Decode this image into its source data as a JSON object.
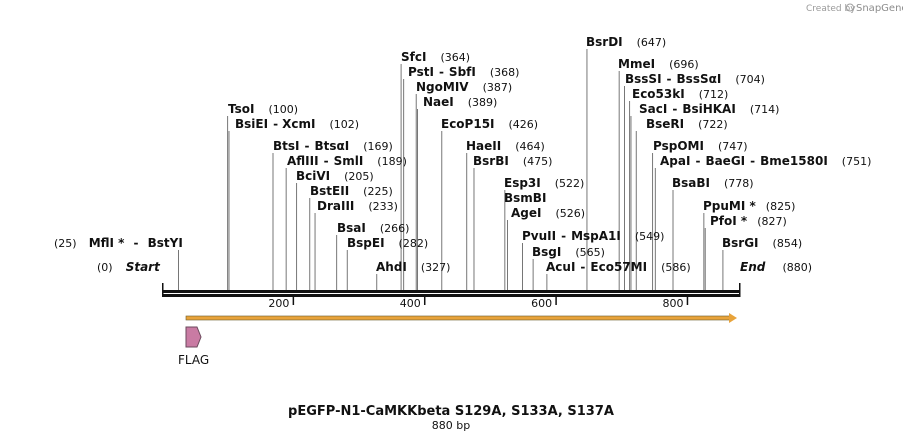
{
  "branding": {
    "prefix": "Created by",
    "product": "SnapGene"
  },
  "sequence": {
    "length": 880,
    "start": 0,
    "end": 880
  },
  "ends": {
    "start_label": "Start",
    "end_label": "End",
    "start_pos": "(0)",
    "end_pos": "(880)"
  },
  "axis": {
    "ticks": [
      200,
      400,
      600,
      800
    ]
  },
  "title": {
    "name": "pEGFP-N1-CaMKKbeta S129A, S133A, S137A",
    "size": "880 bp"
  },
  "features": [
    {
      "label": "FLAG",
      "type": "feature",
      "color": "#c97ba3"
    }
  ],
  "orf_color": "#e8a33a",
  "sites": [
    {
      "names": [
        "MflI *",
        "BstYI"
      ],
      "pos": 25,
      "left": true
    },
    {
      "names": [
        "TsoI"
      ],
      "pos": 100
    },
    {
      "names": [
        "BsiEI",
        "XcmI"
      ],
      "pos": 102
    },
    {
      "names": [
        "BtsI",
        "BtsαI"
      ],
      "pos": 169
    },
    {
      "names": [
        "AflIII",
        "SmlI"
      ],
      "pos": 189
    },
    {
      "names": [
        "BciVI"
      ],
      "pos": 205
    },
    {
      "names": [
        "BstEII"
      ],
      "pos": 225
    },
    {
      "names": [
        "DraIII"
      ],
      "pos": 233
    },
    {
      "names": [
        "BsaI"
      ],
      "pos": 266
    },
    {
      "names": [
        "BspEI"
      ],
      "pos": 282
    },
    {
      "names": [
        "AhdI"
      ],
      "pos": 327
    },
    {
      "names": [
        "SfcI"
      ],
      "pos": 364
    },
    {
      "names": [
        "PstI",
        "SbfI"
      ],
      "pos": 368
    },
    {
      "names": [
        "NgoMIV"
      ],
      "pos": 387
    },
    {
      "names": [
        "NaeI"
      ],
      "pos": 389
    },
    {
      "names": [
        "EcoP15I"
      ],
      "pos": 426
    },
    {
      "names": [
        "HaeII"
      ],
      "pos": 464
    },
    {
      "names": [
        "BsrBI"
      ],
      "pos": 475
    },
    {
      "names": [
        "Esp3I"
      ],
      "pos": 522
    },
    {
      "names": [
        "BsmBI"
      ],
      "pos": null
    },
    {
      "names": [
        "AgeI"
      ],
      "pos": 526
    },
    {
      "names": [
        "PvuII",
        "MspA1I"
      ],
      "pos": 549
    },
    {
      "names": [
        "BsgI"
      ],
      "pos": 565
    },
    {
      "names": [
        "AcuI",
        "Eco57MI"
      ],
      "pos": 586
    },
    {
      "names": [
        "BsrDI"
      ],
      "pos": 647
    },
    {
      "names": [
        "MmeI"
      ],
      "pos": 696
    },
    {
      "names": [
        "BssSI",
        "BssSαI"
      ],
      "pos": 704
    },
    {
      "names": [
        "Eco53kI"
      ],
      "pos": 712
    },
    {
      "names": [
        "SacI",
        "BsiHKAI"
      ],
      "pos": 714
    },
    {
      "names": [
        "BseRI"
      ],
      "pos": 722
    },
    {
      "names": [
        "PspOMI"
      ],
      "pos": 747
    },
    {
      "names": [
        "ApaI",
        "BaeGI",
        "Bme1580I"
      ],
      "pos": 751
    },
    {
      "names": [
        "BsaBI"
      ],
      "pos": 778
    },
    {
      "names": [
        "PpuMI *"
      ],
      "pos": 825
    },
    {
      "names": [
        "PfoI *"
      ],
      "pos": 827
    },
    {
      "names": [
        "BsrGI"
      ],
      "pos": 854
    }
  ]
}
